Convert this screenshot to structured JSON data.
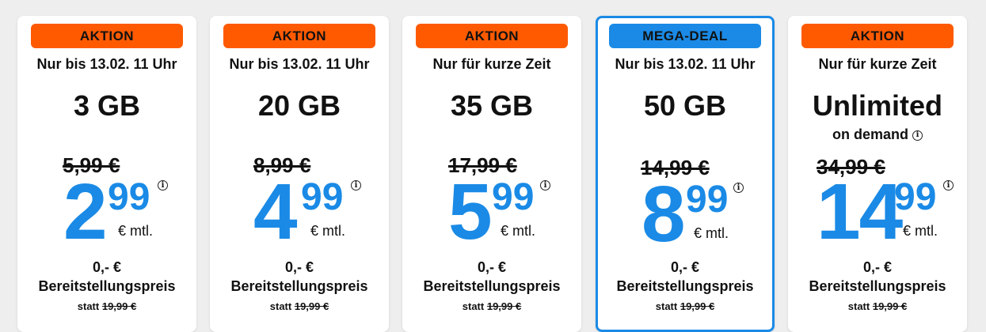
{
  "colors": {
    "aktion_badge": "#ff5a00",
    "mega_badge": "#1a8ae6",
    "price_blue": "#1a8ae6",
    "card_bg": "#ffffff",
    "page_bg": "#eeeeee"
  },
  "plans": [
    {
      "badge": "AKTION",
      "subline": "Nur bis 13.02. 11 Uhr",
      "data": "3 GB",
      "old_price": "5,99 €",
      "price_main": "2",
      "price_cents": "99",
      "price_unit": "€ mtl.",
      "setup_price": "0,- €",
      "setup_label": "Bereitstellungspreis",
      "setup_old_prefix": "statt",
      "setup_old_value": "19,99 €"
    },
    {
      "badge": "AKTION",
      "subline": "Nur bis 13.02. 11 Uhr",
      "data": "20 GB",
      "old_price": "8,99 €",
      "price_main": "4",
      "price_cents": "99",
      "price_unit": "€ mtl.",
      "setup_price": "0,- €",
      "setup_label": "Bereitstellungspreis",
      "setup_old_prefix": "statt",
      "setup_old_value": "19,99 €"
    },
    {
      "badge": "AKTION",
      "subline": "Nur für kurze Zeit",
      "data": "35 GB",
      "old_price": "17,99 €",
      "price_main": "5",
      "price_cents": "99",
      "price_unit": "€ mtl.",
      "setup_price": "0,- €",
      "setup_label": "Bereitstellungspreis",
      "setup_old_prefix": "statt",
      "setup_old_value": "19,99 €"
    },
    {
      "badge": "MEGA-DEAL",
      "subline": "Nur bis 13.02. 11 Uhr",
      "data": "50 GB",
      "old_price": "14,99 €",
      "price_main": "8",
      "price_cents": "99",
      "price_unit": "€ mtl.",
      "setup_price": "0,- €",
      "setup_label": "Bereitstellungspreis",
      "setup_old_prefix": "statt",
      "setup_old_value": "19,99 €"
    },
    {
      "badge": "AKTION",
      "subline": "Nur für kurze Zeit",
      "data": "Unlimited",
      "data_sub": "on demand",
      "old_price": "34,99 €",
      "price_main": "14",
      "price_cents": "99",
      "price_unit": "€ mtl.",
      "setup_price": "0,- €",
      "setup_label": "Bereitstellungspreis",
      "setup_old_prefix": "statt",
      "setup_old_value": "19,99 €"
    }
  ],
  "icons": {
    "info": "info-icon"
  }
}
